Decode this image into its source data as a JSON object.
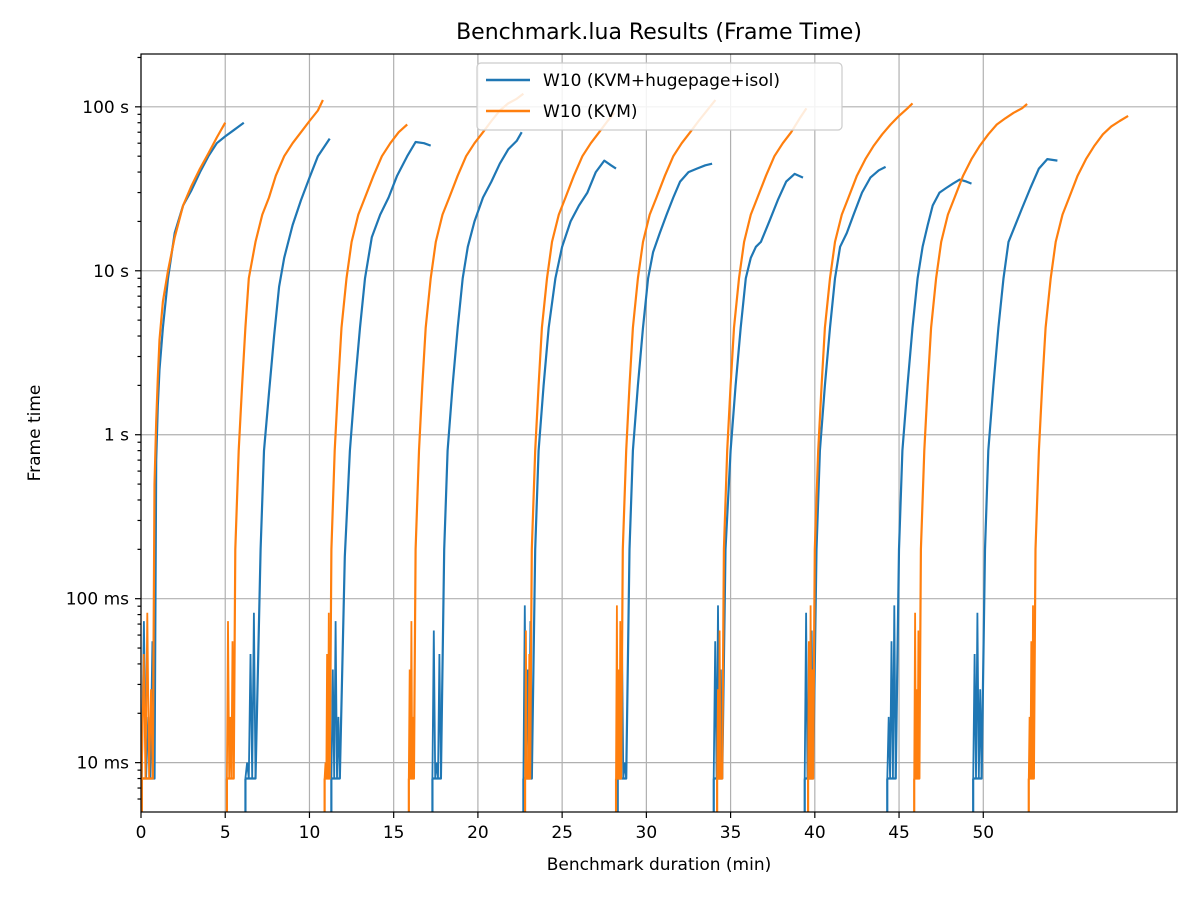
{
  "chart_data": {
    "type": "line",
    "title": "Benchmark.lua Results (Frame Time)",
    "xlabel": "Benchmark duration (min)",
    "ylabel": "Frame time",
    "xlim": [
      0,
      61.5
    ],
    "ylim": [
      0.005,
      210
    ],
    "yscale": "log",
    "grid": true,
    "legend_position": "top-center",
    "x_ticks": [
      0,
      5,
      10,
      15,
      20,
      25,
      30,
      35,
      40,
      45,
      50
    ],
    "x_tick_labels": [
      "0",
      "5",
      "10",
      "15",
      "20",
      "25",
      "30",
      "35",
      "40",
      "45",
      "50"
    ],
    "y_ticks": [
      0.01,
      0.1,
      1,
      10,
      100
    ],
    "y_tick_labels": [
      "10 ms",
      "100 ms",
      "1 s",
      "10 s",
      "100 s"
    ],
    "series": [
      {
        "name": "W10 (KVM+hugepage+isol)",
        "color": "#1f77b4",
        "cycles": [
          {
            "x": [
              0.05,
              0.8,
              0.9,
              1.0,
              1.1,
              1.3,
              1.6,
              2.0,
              2.5,
              3.0,
              3.5,
              4.0,
              4.5,
              5.0,
              5.5,
              6.1
            ],
            "y": [
              0.008,
              0.008,
              0.7,
              1.5,
              2.5,
              4.5,
              9,
              17,
              25,
              31,
              40,
              50,
              60,
              66,
              72,
              80
            ]
          },
          {
            "x": [
              6.2,
              6.8,
              7.1,
              7.3,
              7.6,
              7.9,
              8.2,
              8.5,
              9.0,
              9.5,
              10.0,
              10.5,
              11.2
            ],
            "y": [
              0.008,
              0.008,
              0.2,
              0.8,
              1.8,
              4.0,
              8.0,
              12,
              19,
              27,
              37,
              50,
              64
            ]
          },
          {
            "x": [
              11.3,
              11.8,
              12.1,
              12.4,
              12.7,
              13.0,
              13.3,
              13.7,
              14.2,
              14.7,
              15.2,
              15.8,
              16.3,
              16.8,
              17.2
            ],
            "y": [
              0.008,
              0.008,
              0.18,
              0.8,
              2.0,
              4.5,
              9,
              16,
              22,
              28,
              38,
              50,
              61,
              60,
              58
            ]
          },
          {
            "x": [
              17.3,
              17.8,
              18.0,
              18.2,
              18.5,
              18.8,
              19.1,
              19.4,
              19.8,
              20.3,
              20.8,
              21.3,
              21.8,
              22.3,
              22.6
            ],
            "y": [
              0.008,
              0.008,
              0.2,
              0.8,
              2.0,
              4.5,
              9,
              14,
              20,
              28,
              35,
              45,
              55,
              62,
              70
            ]
          },
          {
            "x": [
              22.7,
              23.2,
              23.4,
              23.6,
              23.9,
              24.2,
              24.6,
              25.0,
              25.5,
              26.0,
              26.5,
              27.0,
              27.5,
              27.9,
              28.2
            ],
            "y": [
              0.008,
              0.008,
              0.2,
              0.8,
              2.0,
              4.5,
              9,
              14,
              20,
              25,
              30,
              40,
              47,
              44,
              42
            ]
          },
          {
            "x": [
              28.3,
              28.8,
              29.0,
              29.2,
              29.5,
              29.8,
              30.1,
              30.4,
              30.8,
              31.2,
              31.6,
              32.0,
              32.5,
              33.0,
              33.5,
              33.9
            ],
            "y": [
              0.008,
              0.008,
              0.2,
              0.8,
              2.0,
              4.5,
              9,
              13,
              17,
              22,
              28,
              35,
              40,
              42,
              44,
              45
            ]
          },
          {
            "x": [
              34.0,
              34.5,
              34.7,
              35.0,
              35.3,
              35.6,
              35.9,
              36.2,
              36.5,
              36.8,
              37.3,
              37.8,
              38.3,
              38.8,
              39.3
            ],
            "y": [
              0.008,
              0.008,
              0.2,
              0.8,
              2.0,
              4.5,
              9,
              12,
              14,
              15,
              20,
              27,
              35,
              39,
              37
            ]
          },
          {
            "x": [
              39.4,
              39.9,
              40.1,
              40.3,
              40.6,
              40.9,
              41.2,
              41.5,
              41.9,
              42.3,
              42.8,
              43.3,
              43.8,
              44.2
            ],
            "y": [
              0.008,
              0.008,
              0.2,
              0.8,
              2.0,
              4.5,
              9,
              14,
              17,
              22,
              30,
              37,
              41,
              43
            ]
          },
          {
            "x": [
              44.3,
              44.8,
              45.0,
              45.2,
              45.5,
              45.8,
              46.1,
              46.4,
              46.7,
              47.0,
              47.4,
              47.8,
              48.2,
              48.6,
              49.0,
              49.3
            ],
            "y": [
              0.008,
              0.008,
              0.2,
              0.8,
              2.0,
              4.5,
              9,
              14,
              19,
              25,
              30,
              32,
              34,
              36,
              35,
              34
            ]
          },
          {
            "x": [
              49.4,
              49.9,
              50.1,
              50.3,
              50.6,
              50.9,
              51.2,
              51.5,
              51.9,
              52.3,
              52.8,
              53.3,
              53.8,
              54.4
            ],
            "y": [
              0.008,
              0.008,
              0.2,
              0.8,
              2.0,
              4.5,
              9,
              15,
              19,
              24,
              32,
              42,
              48,
              47
            ]
          }
        ]
      },
      {
        "name": "W10 (KVM)",
        "color": "#ff7f0e",
        "cycles": [
          {
            "x": [
              0.05,
              0.7,
              0.8,
              0.9,
              1.0,
              1.1,
              1.3,
              1.6,
              2.0,
              2.5,
              3.0,
              3.5,
              4.0,
              4.5,
              5.0
            ],
            "y": [
              0.008,
              0.008,
              0.5,
              1.2,
              2.2,
              3.8,
              6.5,
              10,
              16,
              25,
              33,
              42,
              52,
              65,
              80
            ]
          },
          {
            "x": [
              5.1,
              5.5,
              5.6,
              5.8,
              6.0,
              6.2,
              6.4,
              6.8,
              7.2,
              7.6,
              8.0,
              8.5,
              9.0,
              9.5,
              10.0,
              10.5,
              10.8
            ],
            "y": [
              0.008,
              0.008,
              0.2,
              0.8,
              2.0,
              4.5,
              9,
              15,
              22,
              28,
              38,
              50,
              60,
              70,
              82,
              95,
              110
            ]
          },
          {
            "x": [
              10.9,
              11.2,
              11.3,
              11.5,
              11.7,
              11.9,
              12.2,
              12.5,
              12.9,
              13.3,
              13.8,
              14.3,
              14.8,
              15.3,
              15.8
            ],
            "y": [
              0.008,
              0.008,
              0.2,
              0.8,
              2.0,
              4.5,
              9,
              15,
              22,
              28,
              38,
              50,
              60,
              70,
              78
            ]
          },
          {
            "x": [
              15.9,
              16.2,
              16.3,
              16.5,
              16.7,
              16.9,
              17.2,
              17.5,
              17.9,
              18.3,
              18.8,
              19.3,
              19.8,
              20.3,
              20.8,
              21.3,
              21.8,
              22.3,
              22.7
            ],
            "y": [
              0.008,
              0.008,
              0.2,
              0.8,
              2.0,
              4.5,
              9,
              15,
              22,
              28,
              38,
              50,
              60,
              70,
              82,
              95,
              105,
              112,
              120
            ]
          },
          {
            "x": [
              22.8,
              23.1,
              23.2,
              23.4,
              23.6,
              23.8,
              24.1,
              24.4,
              24.8,
              25.2,
              25.7,
              26.2,
              26.7,
              27.2,
              27.7,
              28.1
            ],
            "y": [
              0.008,
              0.008,
              0.2,
              0.8,
              2.0,
              4.5,
              9,
              15,
              22,
              28,
              38,
              50,
              60,
              70,
              82,
              92
            ]
          },
          {
            "x": [
              28.2,
              28.5,
              28.6,
              28.8,
              29.0,
              29.2,
              29.5,
              29.8,
              30.2,
              30.6,
              31.1,
              31.6,
              32.1,
              32.6,
              33.1,
              33.6,
              34.1
            ],
            "y": [
              0.008,
              0.008,
              0.2,
              0.8,
              2.0,
              4.5,
              9,
              15,
              22,
              28,
              38,
              50,
              60,
              70,
              82,
              95,
              110
            ]
          },
          {
            "x": [
              34.2,
              34.5,
              34.6,
              34.8,
              35.0,
              35.2,
              35.5,
              35.8,
              36.2,
              36.6,
              37.1,
              37.6,
              38.1,
              38.6,
              39.1,
              39.5
            ],
            "y": [
              0.008,
              0.008,
              0.2,
              0.8,
              2.0,
              4.5,
              9,
              15,
              22,
              28,
              38,
              50,
              60,
              70,
              85,
              98
            ]
          },
          {
            "x": [
              39.6,
              39.9,
              40.0,
              40.2,
              40.4,
              40.6,
              40.9,
              41.2,
              41.6,
              42.0,
              42.5,
              43.0,
              43.5,
              44.0,
              44.5,
              45.0,
              45.5,
              45.8
            ],
            "y": [
              0.008,
              0.008,
              0.2,
              0.8,
              2.0,
              4.5,
              9,
              15,
              22,
              28,
              38,
              48,
              58,
              68,
              78,
              88,
              98,
              105
            ]
          },
          {
            "x": [
              45.9,
              46.2,
              46.3,
              46.5,
              46.7,
              46.9,
              47.2,
              47.5,
              47.9,
              48.3,
              48.8,
              49.3,
              49.8,
              50.3,
              50.8,
              51.3,
              51.8,
              52.3,
              52.6
            ],
            "y": [
              0.008,
              0.008,
              0.2,
              0.8,
              2.0,
              4.5,
              9,
              15,
              22,
              28,
              38,
              48,
              58,
              68,
              78,
              85,
              92,
              98,
              104
            ]
          },
          {
            "x": [
              52.7,
              53.0,
              53.1,
              53.3,
              53.5,
              53.7,
              54.0,
              54.3,
              54.7,
              55.1,
              55.6,
              56.1,
              56.6,
              57.1,
              57.6,
              58.1,
              58.6
            ],
            "y": [
              0.008,
              0.008,
              0.2,
              0.8,
              2.0,
              4.5,
              9,
              15,
              22,
              28,
              38,
              48,
              58,
              68,
              76,
              82,
              88
            ]
          }
        ]
      }
    ]
  }
}
